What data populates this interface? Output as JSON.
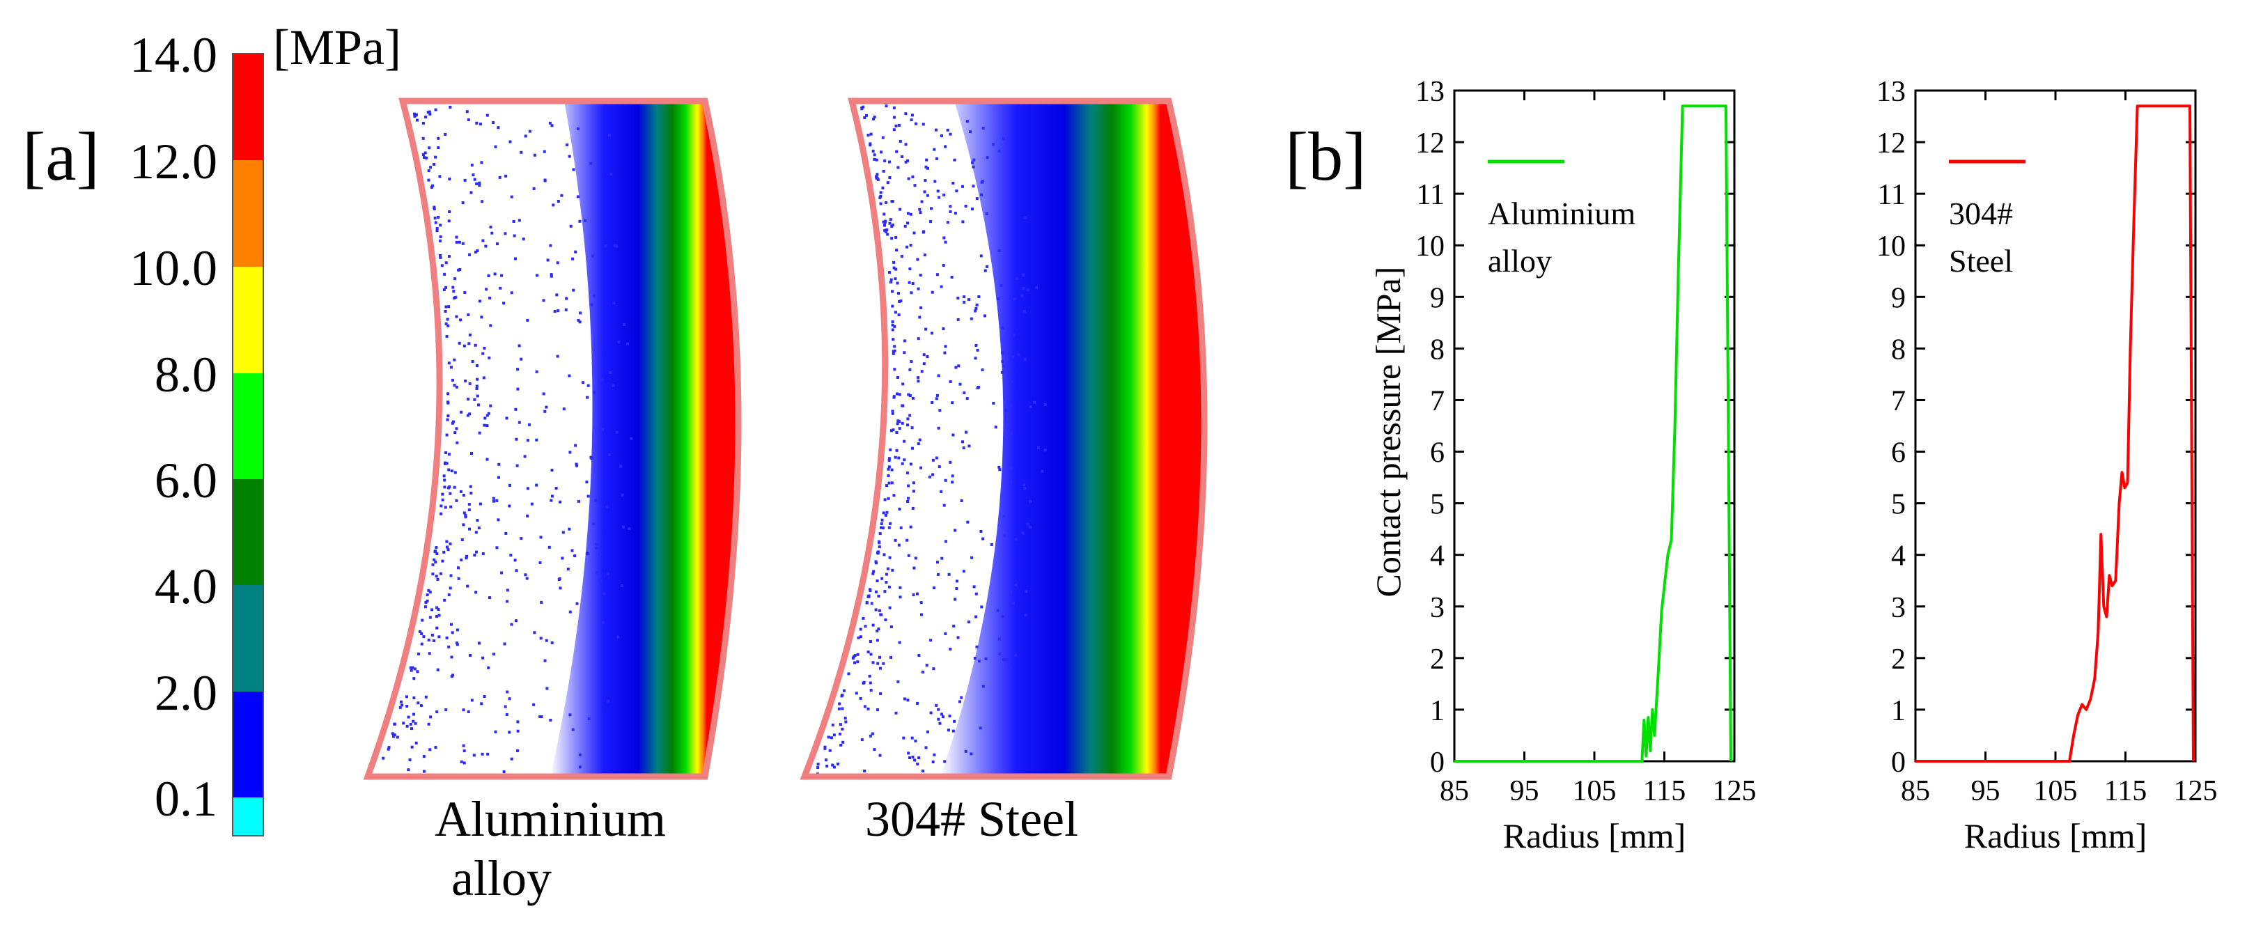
{
  "panel_a": {
    "label": "[a]",
    "colorbar": {
      "unit": "[MPa]",
      "ticks": [
        "14.0",
        "12.0",
        "10.0",
        "8.0",
        "6.0",
        "4.0",
        "2.0",
        "0.1"
      ],
      "colors": [
        "#ff0000",
        "#ff8000",
        "#ffff00",
        "#00ff00",
        "#008000",
        "#008080",
        "#0000ff",
        "#00ffff"
      ]
    },
    "maps": [
      {
        "name": "aluminium",
        "label_lines": [
          "Aluminium",
          "alloy"
        ]
      },
      {
        "name": "steel",
        "label_lines": [
          "304# Steel"
        ]
      }
    ],
    "outline_color": "#f08080"
  },
  "panel_b": {
    "label": "[b]"
  },
  "chart_data": [
    {
      "type": "line",
      "title": "",
      "xlabel": "Radius [mm]",
      "ylabel": "Contact pressure [MPa]",
      "xlim": [
        85,
        125
      ],
      "ylim": [
        0,
        13
      ],
      "xticks": [
        "85",
        "95",
        "105",
        "115",
        "125"
      ],
      "yticks": [
        "0",
        "1",
        "2",
        "3",
        "4",
        "5",
        "6",
        "7",
        "8",
        "9",
        "10",
        "11",
        "12",
        "13"
      ],
      "legend_lines": [
        "Aluminium",
        "alloy"
      ],
      "legend_position": "top-left",
      "color": "#00e000",
      "series": [
        {
          "name": "Aluminium alloy",
          "x": [
            85,
            111.8,
            112.1,
            112.4,
            112.7,
            113.0,
            113.3,
            113.6,
            113.9,
            114.2,
            114.6,
            115.0,
            115.5,
            116.0,
            116.5,
            117.0,
            117.6,
            123.8,
            124.5
          ],
          "y": [
            0,
            0,
            0.8,
            0.1,
            0.85,
            0.2,
            1.0,
            0.5,
            1.2,
            1.9,
            2.9,
            3.4,
            4.0,
            4.3,
            6.5,
            9.5,
            12.7,
            12.7,
            0
          ]
        }
      ]
    },
    {
      "type": "line",
      "title": "",
      "xlabel": "Radius [mm]",
      "ylabel": "",
      "xlim": [
        85,
        125
      ],
      "ylim": [
        0,
        13
      ],
      "xticks": [
        "85",
        "95",
        "105",
        "115",
        "125"
      ],
      "yticks": [
        "0",
        "1",
        "2",
        "3",
        "4",
        "5",
        "6",
        "7",
        "8",
        "9",
        "10",
        "11",
        "12",
        "13"
      ],
      "legend_lines": [
        "304#",
        "Steel"
      ],
      "legend_position": "top-left",
      "color": "#ff0000",
      "series": [
        {
          "name": "304# Steel",
          "x": [
            85,
            107.0,
            107.6,
            108.2,
            108.8,
            109.4,
            110.0,
            110.6,
            111.1,
            111.5,
            111.9,
            112.3,
            112.7,
            113.1,
            113.6,
            114.1,
            114.5,
            114.9,
            115.3,
            115.7,
            116.2,
            116.7,
            117.3,
            124.2,
            124.7
          ],
          "y": [
            0,
            0,
            0.5,
            0.9,
            1.1,
            1.0,
            1.2,
            1.6,
            2.5,
            4.4,
            3.0,
            2.8,
            3.6,
            3.4,
            3.5,
            5.0,
            5.6,
            5.3,
            5.4,
            8.0,
            10.5,
            12.7,
            12.7,
            12.7,
            0
          ]
        }
      ]
    }
  ]
}
